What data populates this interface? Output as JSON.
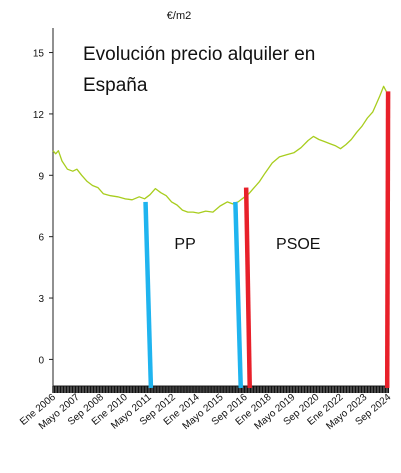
{
  "chart_data": {
    "type": "line",
    "title_lines": [
      "Evolución precio alquiler en",
      "España"
    ],
    "ylabel": "€/m2",
    "xlabel": "",
    "ylim": [
      -1.3,
      16.2
    ],
    "yticks": [
      0,
      3,
      6,
      9,
      12,
      15
    ],
    "xlim": [
      2006.0,
      2024.7
    ],
    "xtick_labels": [
      {
        "label": "Ene 2006",
        "x": 2006.0
      },
      {
        "label": "Mayo 2007",
        "x": 2007.33
      },
      {
        "label": "Sep 2008",
        "x": 2008.67
      },
      {
        "label": "Ene 2010",
        "x": 2010.0
      },
      {
        "label": "Mayo 2011",
        "x": 2011.33
      },
      {
        "label": "Sep 2012",
        "x": 2012.67
      },
      {
        "label": "Ene 2014",
        "x": 2014.0
      },
      {
        "label": "Mayo 2015",
        "x": 2015.33
      },
      {
        "label": "Sep 2016",
        "x": 2016.67
      },
      {
        "label": "Ene 2018",
        "x": 2018.0
      },
      {
        "label": "Mayo 2019",
        "x": 2019.33
      },
      {
        "label": "Sep 2020",
        "x": 2020.67
      },
      {
        "label": "Ene 2022",
        "x": 2022.0
      },
      {
        "label": "Mayo 2023",
        "x": 2023.33
      },
      {
        "label": "Sep 2024",
        "x": 2024.67
      }
    ],
    "series": [
      {
        "color": "#a8cd1e",
        "points": [
          [
            2006.0,
            10.2
          ],
          [
            2006.15,
            10.05
          ],
          [
            2006.3,
            10.2
          ],
          [
            2006.5,
            9.7
          ],
          [
            2006.8,
            9.3
          ],
          [
            2007.1,
            9.2
          ],
          [
            2007.33,
            9.3
          ],
          [
            2007.6,
            9.0
          ],
          [
            2007.9,
            8.7
          ],
          [
            2008.2,
            8.5
          ],
          [
            2008.5,
            8.4
          ],
          [
            2008.8,
            8.1
          ],
          [
            2009.2,
            8.0
          ],
          [
            2009.6,
            7.95
          ],
          [
            2010.0,
            7.85
          ],
          [
            2010.4,
            7.8
          ],
          [
            2010.8,
            7.95
          ],
          [
            2011.1,
            7.85
          ],
          [
            2011.4,
            8.05
          ],
          [
            2011.7,
            8.35
          ],
          [
            2012.0,
            8.15
          ],
          [
            2012.3,
            8.0
          ],
          [
            2012.6,
            7.7
          ],
          [
            2012.9,
            7.55
          ],
          [
            2013.2,
            7.3
          ],
          [
            2013.5,
            7.2
          ],
          [
            2013.8,
            7.2
          ],
          [
            2014.1,
            7.15
          ],
          [
            2014.5,
            7.25
          ],
          [
            2014.9,
            7.2
          ],
          [
            2015.3,
            7.5
          ],
          [
            2015.7,
            7.7
          ],
          [
            2016.0,
            7.6
          ],
          [
            2016.3,
            7.7
          ],
          [
            2016.6,
            7.9
          ],
          [
            2016.9,
            8.1
          ],
          [
            2017.2,
            8.4
          ],
          [
            2017.5,
            8.7
          ],
          [
            2017.8,
            9.1
          ],
          [
            2018.2,
            9.6
          ],
          [
            2018.6,
            9.9
          ],
          [
            2019.0,
            10.0
          ],
          [
            2019.4,
            10.1
          ],
          [
            2019.8,
            10.35
          ],
          [
            2020.2,
            10.7
          ],
          [
            2020.5,
            10.9
          ],
          [
            2020.8,
            10.75
          ],
          [
            2021.1,
            10.65
          ],
          [
            2021.4,
            10.55
          ],
          [
            2021.7,
            10.45
          ],
          [
            2022.0,
            10.3
          ],
          [
            2022.3,
            10.5
          ],
          [
            2022.6,
            10.75
          ],
          [
            2022.9,
            11.1
          ],
          [
            2023.2,
            11.4
          ],
          [
            2023.5,
            11.8
          ],
          [
            2023.8,
            12.1
          ],
          [
            2024.0,
            12.5
          ],
          [
            2024.2,
            12.9
          ],
          [
            2024.4,
            13.35
          ],
          [
            2024.55,
            13.1
          ]
        ]
      }
    ],
    "government_markers": [
      {
        "color": "#1fb4ef",
        "x_top": 2011.15,
        "x_bottom": 2011.45,
        "y_top": 7.7
      },
      {
        "color": "#1fb4ef",
        "x_top": 2016.15,
        "x_bottom": 2016.45,
        "y_top": 7.7
      },
      {
        "color": "#e8202a",
        "x_top": 2016.75,
        "x_bottom": 2016.95,
        "y_top": 8.4
      },
      {
        "color": "#e8202a",
        "x_top": 2024.65,
        "x_bottom": 2024.6,
        "y_top": 13.1
      }
    ],
    "period_labels": [
      {
        "text": "PP",
        "x": 2013.35,
        "y": 5.4
      },
      {
        "text": "PSOE",
        "x": 2019.65,
        "y": 5.4
      }
    ],
    "grid": false,
    "legend": "none"
  }
}
